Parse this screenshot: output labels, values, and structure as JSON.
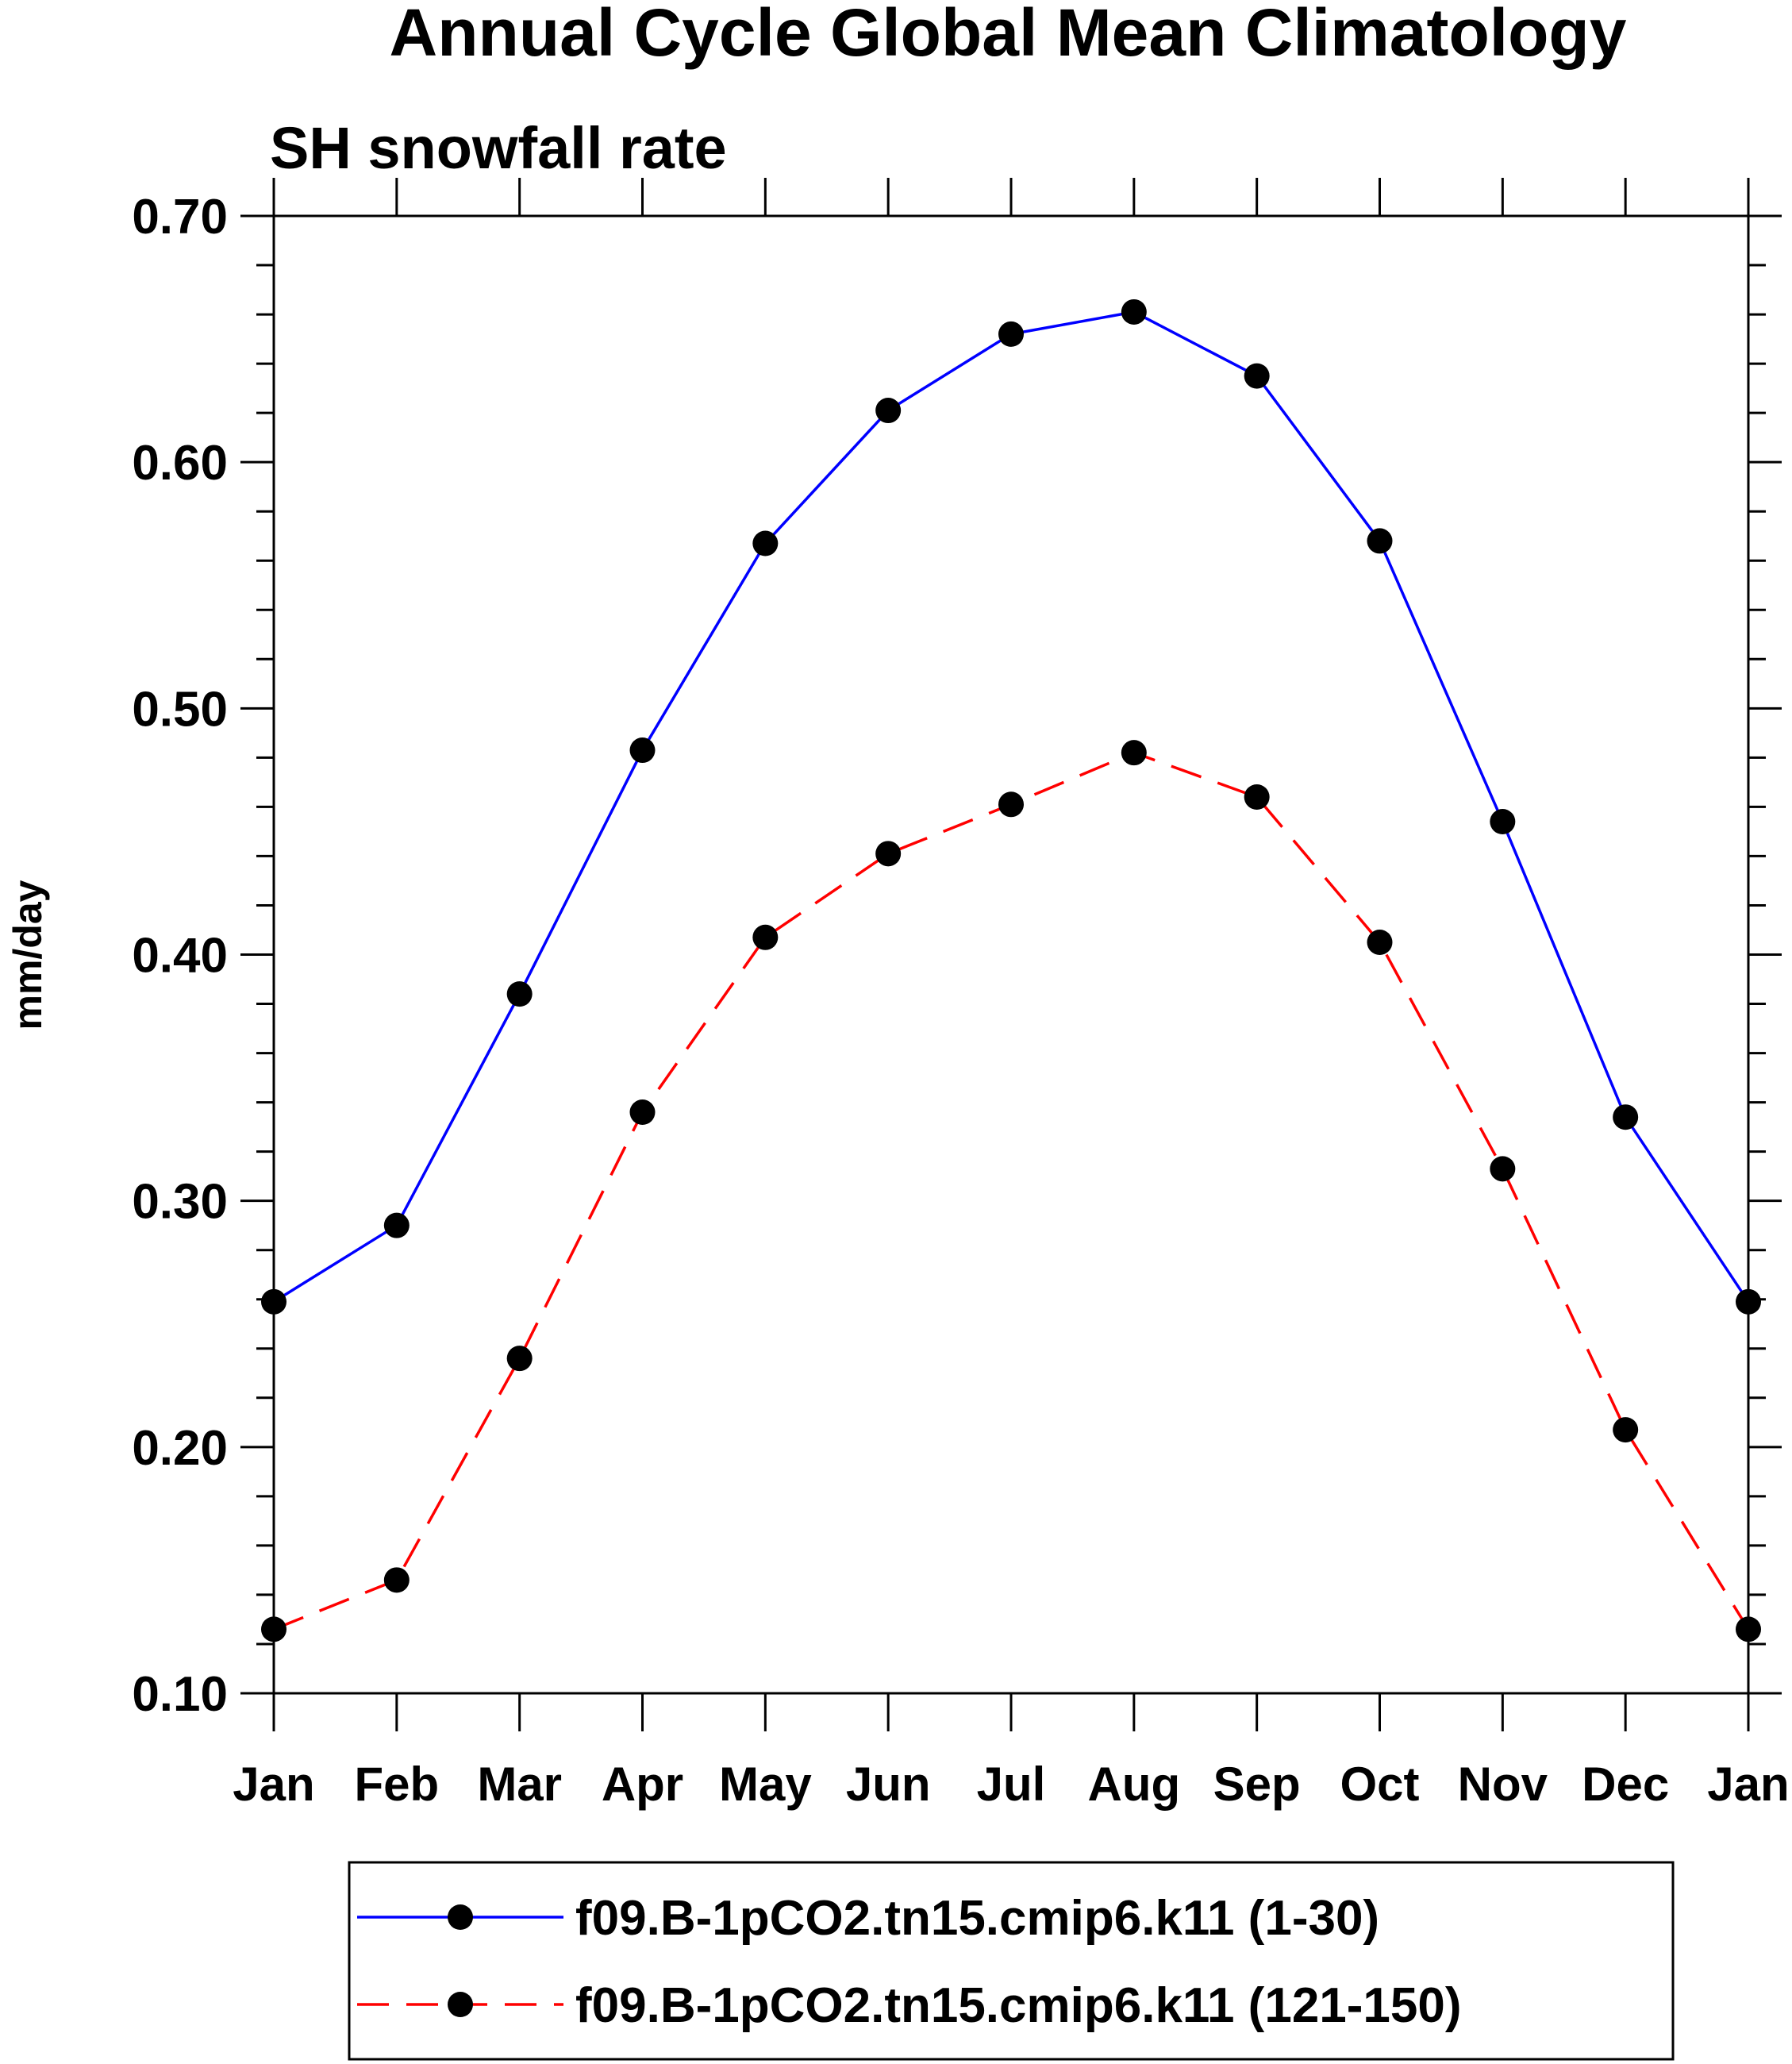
{
  "chart_data": {
    "type": "line",
    "title": "Annual Cycle Global Mean Climatology",
    "subtitle": "SH snowfall rate",
    "ylabel": "mm/day",
    "xlabel": "",
    "categories": [
      "Jan",
      "Feb",
      "Mar",
      "Apr",
      "May",
      "Jun",
      "Jul",
      "Aug",
      "Sep",
      "Oct",
      "Nov",
      "Dec",
      "Jan"
    ],
    "ylim": [
      0.1,
      0.7
    ],
    "yticks": [
      "0.10",
      "0.20",
      "0.30",
      "0.40",
      "0.50",
      "0.60",
      "0.70"
    ],
    "grid": false,
    "legend_position": "bottom",
    "series": [
      {
        "name": "f09.B-1pCO2.tn15.cmip6.k11 (1-30)",
        "color": "#0000ff",
        "style": "solid",
        "values": [
          0.259,
          0.29,
          0.384,
          0.483,
          0.567,
          0.621,
          0.652,
          0.661,
          0.635,
          0.568,
          0.454,
          0.334,
          0.259
        ]
      },
      {
        "name": "f09.B-1pCO2.tn15.cmip6.k11 (121-150)",
        "color": "#ff0000",
        "style": "dashed",
        "values": [
          0.126,
          0.146,
          0.236,
          0.336,
          0.407,
          0.441,
          0.461,
          0.482,
          0.464,
          0.405,
          0.313,
          0.207,
          0.126
        ]
      }
    ]
  }
}
